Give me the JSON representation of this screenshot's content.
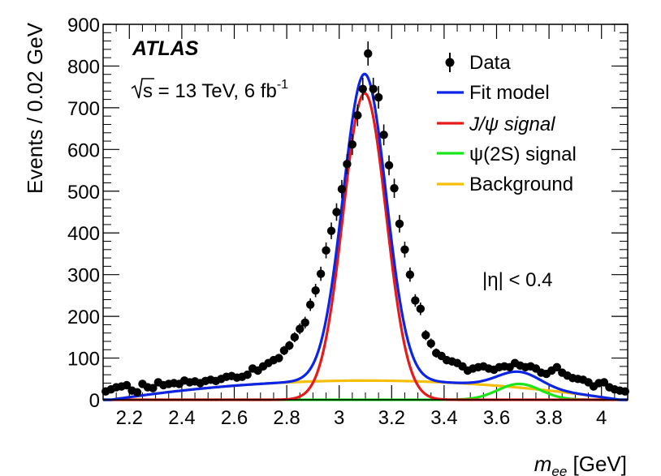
{
  "chart_data": {
    "type": "line",
    "xlabel_var": "m",
    "xlabel_sub": "ee",
    "xlabel_unit": " [GeV]",
    "ylabel": "Events / 0.02 GeV",
    "xlim": [
      2.1,
      4.1
    ],
    "ylim": [
      0,
      900
    ],
    "x_ticks": [
      2.2,
      2.4,
      2.6,
      2.8,
      3.0,
      3.2,
      3.4,
      3.6,
      3.8,
      4.0
    ],
    "x_tick_labels": [
      "2.2",
      "2.4",
      "2.6",
      "2.8",
      "3",
      "3.2",
      "3.4",
      "3.6",
      "3.8",
      "4"
    ],
    "y_ticks": [
      0,
      100,
      200,
      300,
      400,
      500,
      600,
      700,
      800,
      900
    ],
    "y_tick_labels": [
      "0",
      "100",
      "200",
      "300",
      "400",
      "500",
      "600",
      "700",
      "800",
      "900"
    ],
    "experiment": "ATLAS",
    "energy_label": "s = 13 TeV, 6 fb",
    "energy_sup": "-1",
    "region_label": "|η| < 0.4",
    "legend": [
      {
        "key": "data",
        "label": "Data",
        "color": "#000000",
        "style": "marker"
      },
      {
        "key": "fit",
        "label": "Fit model",
        "color": "#0b24e6",
        "style": "line"
      },
      {
        "key": "jpsi",
        "label": "J/ψ signal",
        "color": "#e61a1a",
        "style": "line"
      },
      {
        "key": "psi2s",
        "label": "ψ(2S) signal",
        "color": "#1ae61a",
        "style": "line"
      },
      {
        "key": "bkg",
        "label": "Background",
        "color": "#f5be0a",
        "style": "line"
      }
    ],
    "model": {
      "jpsi": {
        "mean": 3.097,
        "sigma": 0.082,
        "amplitude": 735
      },
      "psi2s": {
        "mean": 3.686,
        "sigma": 0.082,
        "amplitude": 38
      },
      "background": {
        "peak_x": 3.1,
        "peak_y": 46,
        "curvature": 49
      }
    },
    "data_x": [
      2.11,
      2.13,
      2.15,
      2.17,
      2.19,
      2.21,
      2.23,
      2.25,
      2.27,
      2.29,
      2.31,
      2.33,
      2.35,
      2.37,
      2.39,
      2.41,
      2.43,
      2.45,
      2.47,
      2.49,
      2.51,
      2.53,
      2.55,
      2.57,
      2.59,
      2.61,
      2.63,
      2.65,
      2.67,
      2.69,
      2.71,
      2.73,
      2.75,
      2.77,
      2.79,
      2.81,
      2.83,
      2.85,
      2.87,
      2.89,
      2.91,
      2.93,
      2.95,
      2.97,
      2.99,
      3.01,
      3.03,
      3.05,
      3.07,
      3.09,
      3.11,
      3.13,
      3.15,
      3.17,
      3.19,
      3.21,
      3.23,
      3.25,
      3.27,
      3.29,
      3.31,
      3.33,
      3.35,
      3.37,
      3.39,
      3.41,
      3.43,
      3.45,
      3.47,
      3.49,
      3.51,
      3.53,
      3.55,
      3.57,
      3.59,
      3.61,
      3.63,
      3.65,
      3.67,
      3.69,
      3.71,
      3.73,
      3.75,
      3.77,
      3.79,
      3.81,
      3.83,
      3.85,
      3.87,
      3.89,
      3.91,
      3.93,
      3.95,
      3.97,
      3.99,
      4.01,
      4.03,
      4.05,
      4.07,
      4.09
    ],
    "data_y": [
      20,
      25,
      30,
      32,
      35,
      22,
      18,
      38,
      30,
      28,
      42,
      35,
      38,
      40,
      38,
      46,
      42,
      44,
      40,
      45,
      48,
      45,
      50,
      55,
      57,
      53,
      55,
      60,
      75,
      70,
      80,
      88,
      95,
      100,
      118,
      130,
      150,
      170,
      185,
      228,
      262,
      302,
      358,
      405,
      450,
      505,
      565,
      612,
      682,
      745,
      830,
      745,
      725,
      635,
      562,
      507,
      422,
      360,
      300,
      238,
      218,
      155,
      135,
      112,
      105,
      95,
      92,
      88,
      80,
      70,
      75,
      78,
      80,
      75,
      72,
      78,
      80,
      78,
      88,
      82,
      78,
      80,
      75,
      65,
      62,
      70,
      78,
      65,
      58,
      52,
      50,
      48,
      42,
      32,
      40,
      42,
      30,
      25,
      22,
      20
    ],
    "data_err": [
      5,
      5,
      6,
      6,
      6,
      5,
      5,
      6,
      6,
      5,
      7,
      6,
      6,
      6,
      6,
      7,
      7,
      7,
      6,
      7,
      7,
      7,
      7,
      7,
      8,
      7,
      7,
      8,
      9,
      8,
      9,
      9,
      10,
      10,
      11,
      11,
      12,
      13,
      14,
      15,
      16,
      17,
      19,
      20,
      21,
      22,
      24,
      25,
      26,
      27,
      29,
      27,
      27,
      25,
      24,
      23,
      21,
      19,
      17,
      15,
      15,
      12,
      12,
      11,
      10,
      10,
      10,
      9,
      9,
      8,
      9,
      9,
      9,
      9,
      8,
      9,
      9,
      9,
      9,
      9,
      9,
      9,
      9,
      8,
      8,
      8,
      9,
      8,
      8,
      7,
      7,
      7,
      7,
      6,
      6,
      7,
      6,
      5,
      5,
      5
    ]
  }
}
